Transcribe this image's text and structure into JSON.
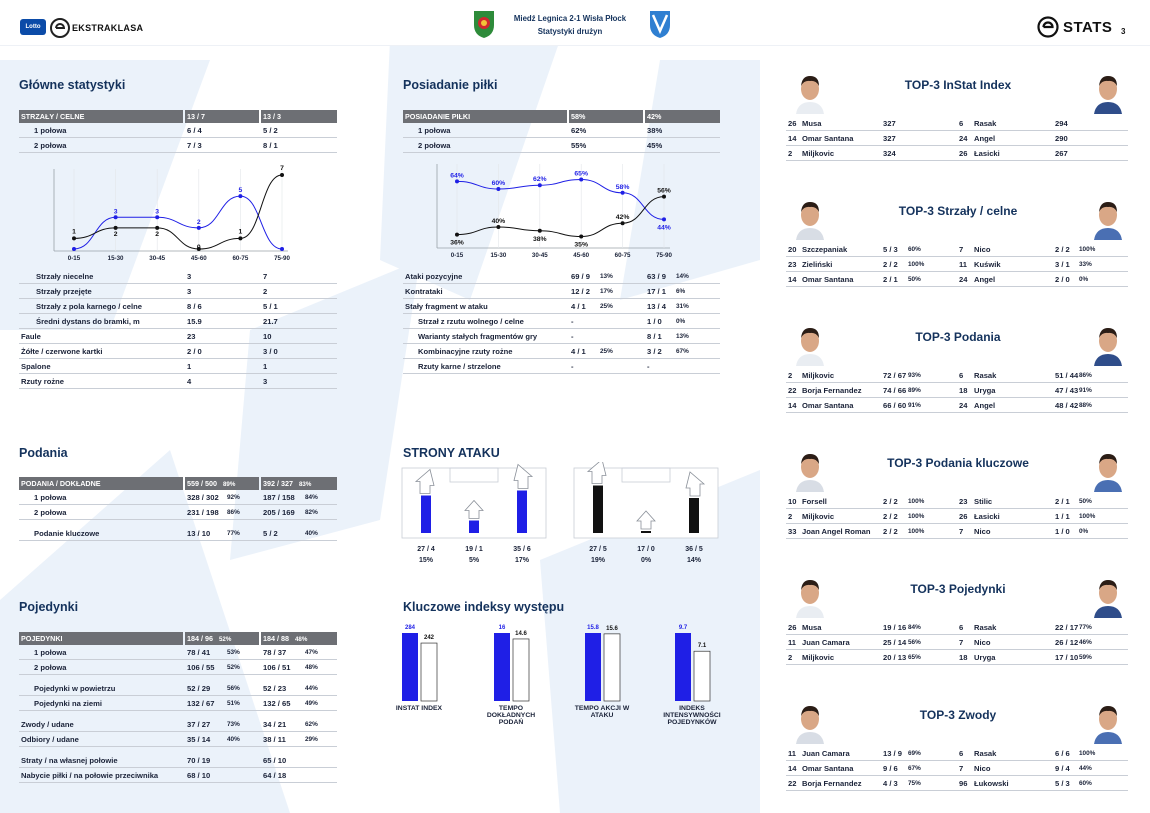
{
  "header": {
    "league": "EKSTRAKLASA",
    "lotto": "Lotto",
    "match": "Miedź Legnica 2-1 Wisła Płock",
    "subtitle": "Statystyki drużyn",
    "brand": "STATS",
    "page": "3"
  },
  "colors": {
    "blue": "#1f1fe6",
    "black": "#111111",
    "header": "#6d6f74",
    "navy": "#14325c"
  },
  "main_stats": {
    "title": "Główne statystyki",
    "header": [
      "STRZAŁY / CELNE",
      "13 / 7",
      "13 / 3"
    ],
    "rows1": [
      [
        "1 połowa",
        "6 / 4",
        "5 / 2"
      ],
      [
        "2 połowa",
        "7 / 3",
        "8 / 1"
      ]
    ],
    "rows2": [
      [
        "Strzały niecelne",
        "3",
        "7"
      ],
      [
        "Strzały przejęte",
        "3",
        "2"
      ],
      [
        "Strzały z pola karnego / celne",
        "8 / 6",
        "5 / 1"
      ],
      [
        "Średni dystans do bramki, m",
        "15.9",
        "21.7"
      ],
      [
        "Faule",
        "23",
        "10"
      ],
      [
        "Żółte / czerwone kartki",
        "2 / 0",
        "3 / 0"
      ],
      [
        "Spalone",
        "1",
        "1"
      ],
      [
        "Rzuty rożne",
        "4",
        "3"
      ]
    ]
  },
  "shots_chart": {
    "categories": [
      "0-15",
      "15-30",
      "30-45",
      "45-60",
      "60-75",
      "75-90"
    ],
    "series_blue": [
      0,
      3,
      3,
      2,
      5,
      0
    ],
    "series_black": [
      1,
      2,
      2,
      0,
      1,
      7
    ]
  },
  "possession": {
    "title": "Posiadanie piłki",
    "header": [
      "POSIADANIE PIŁKI",
      "58%",
      "42%"
    ],
    "rows1": [
      [
        "1 połowa",
        "62%",
        "38%"
      ],
      [
        "2 połowa",
        "55%",
        "45%"
      ]
    ],
    "rows2": [
      {
        "label": "Ataki pozycyjne",
        "a": "69 / 9",
        "ap": "13%",
        "b": "63 / 9",
        "bp": "14%",
        "indent": false
      },
      {
        "label": "Kontrataki",
        "a": "12 / 2",
        "ap": "17%",
        "b": "17 / 1",
        "bp": "6%",
        "indent": false
      },
      {
        "label": "Stały fragment w ataku",
        "a": "4 / 1",
        "ap": "25%",
        "b": "13 / 4",
        "bp": "31%",
        "indent": false
      },
      {
        "label": "Strzał z rzutu wolnego / celne",
        "a": "-",
        "ap": "",
        "b": "1 / 0",
        "bp": "0%",
        "indent": true
      },
      {
        "label": "Warianty stałych fragmentów gry",
        "a": "-",
        "ap": "",
        "b": "8 / 1",
        "bp": "13%",
        "indent": true
      },
      {
        "label": "Kombinacyjne rzuty rożne",
        "a": "4 / 1",
        "ap": "25%",
        "b": "3 / 2",
        "bp": "67%",
        "indent": true
      },
      {
        "label": "Rzuty karne / strzelone",
        "a": "-",
        "ap": "",
        "b": "-",
        "bp": "",
        "indent": true
      }
    ]
  },
  "possession_chart": {
    "categories": [
      "0-15",
      "15-30",
      "30-45",
      "45-60",
      "60-75",
      "75-90"
    ],
    "series_blue": [
      64,
      60,
      62,
      65,
      58,
      44
    ],
    "series_black": [
      36,
      40,
      38,
      35,
      42,
      56
    ],
    "labels_blue": [
      "64%",
      "60%",
      "62%",
      "65%",
      "58%",
      "44%"
    ],
    "labels_black": [
      "36%",
      "40%",
      "38%",
      "35%",
      "42%",
      "56%"
    ]
  },
  "passes": {
    "title": "Podania",
    "header": [
      "PODANIA / DOKŁADNE",
      "559 / 500",
      "89%",
      "392 / 327",
      "83%"
    ],
    "rows": [
      [
        "1 połowa",
        "328 / 302",
        "92%",
        "187 / 158",
        "84%"
      ],
      [
        "2 połowa",
        "231 / 198",
        "86%",
        "205 / 169",
        "82%"
      ],
      [
        "Podanie kluczowe",
        "13 / 10",
        "77%",
        "5 / 2",
        "40%"
      ]
    ]
  },
  "duels": {
    "title": "Pojedynki",
    "header": [
      "POJEDYNKI",
      "184 / 96",
      "52%",
      "184 / 88",
      "48%"
    ],
    "rows": [
      [
        "1 połowa",
        "78 / 41",
        "53%",
        "78 / 37",
        "47%"
      ],
      [
        "2 połowa",
        "106 / 55",
        "52%",
        "106 / 51",
        "48%"
      ],
      [
        "Pojedynki w powietrzu",
        "52 / 29",
        "56%",
        "52 / 23",
        "44%"
      ],
      [
        "Pojedynki na ziemi",
        "132 / 67",
        "51%",
        "132 / 65",
        "49%"
      ],
      [
        "Zwody / udane",
        "37 / 27",
        "73%",
        "34 / 21",
        "62%"
      ],
      [
        "Odbiory / udane",
        "35 / 14",
        "40%",
        "38 / 11",
        "29%"
      ],
      [
        "Straty / na własnej połowie",
        "70 / 19",
        "",
        "65 / 10",
        ""
      ],
      [
        "Nabycie piłki / na połowie przeciwnika",
        "68 / 10",
        "",
        "64 / 18",
        ""
      ]
    ]
  },
  "attack_sides": {
    "title": "STRONY ATAKU",
    "team_a": {
      "values": [
        "27 / 4",
        "19 / 1",
        "35 / 6"
      ],
      "pcts": [
        "15%",
        "5%",
        "17%"
      ],
      "fill": [
        0.15,
        0.05,
        0.17
      ]
    },
    "team_b": {
      "values": [
        "27 / 5",
        "17 / 0",
        "36 / 5"
      ],
      "pcts": [
        "19%",
        "0%",
        "14%"
      ],
      "fill": [
        0.19,
        0.0,
        0.14
      ]
    }
  },
  "key_indices": {
    "title": "Kluczowe indeksy występu",
    "items": [
      {
        "label": "INSTAT INDEX",
        "a": 284,
        "b": 242
      },
      {
        "label": "TEMPO DOKŁADNYCH PODAŃ",
        "a": 16,
        "b": 14.6
      },
      {
        "label": "TEMPO AKCJI W ATAKU",
        "a": 15.8,
        "b": 15.6
      },
      {
        "label": "INDEKS INTENSYWNOŚCI POJEDYNKÓW",
        "a": 9.7,
        "b": 7.1
      }
    ]
  },
  "top3": [
    {
      "title": "TOP-3 InStat Index",
      "rows": [
        {
          "n1": "26",
          "p1": "Musa",
          "v1": "327",
          "c1": "",
          "n2": "6",
          "p2": "Rasak",
          "v2": "294",
          "c2": ""
        },
        {
          "n1": "14",
          "p1": "Omar Santana",
          "v1": "327",
          "c1": "",
          "n2": "24",
          "p2": "Angel",
          "v2": "290",
          "c2": ""
        },
        {
          "n1": "2",
          "p1": "Miljkovic",
          "v1": "324",
          "c1": "",
          "n2": "26",
          "p2": "Łasicki",
          "v2": "267",
          "c2": ""
        }
      ]
    },
    {
      "title": "TOP-3 Strzały / celne",
      "rows": [
        {
          "n1": "20",
          "p1": "Szczepaniak",
          "v1": "5 / 3",
          "c1": "60%",
          "n2": "7",
          "p2": "Nico",
          "v2": "2 / 2",
          "c2": "100%"
        },
        {
          "n1": "23",
          "p1": "Zieliński",
          "v1": "2 / 2",
          "c1": "100%",
          "n2": "11",
          "p2": "Kuświk",
          "v2": "3 / 1",
          "c2": "33%"
        },
        {
          "n1": "14",
          "p1": "Omar Santana",
          "v1": "2 / 1",
          "c1": "50%",
          "n2": "24",
          "p2": "Angel",
          "v2": "2 / 0",
          "c2": "0%"
        }
      ]
    },
    {
      "title": "TOP-3 Podania",
      "rows": [
        {
          "n1": "2",
          "p1": "Miljkovic",
          "v1": "72 / 67",
          "c1": "93%",
          "n2": "6",
          "p2": "Rasak",
          "v2": "51 / 44",
          "c2": "86%"
        },
        {
          "n1": "22",
          "p1": "Borja Fernandez",
          "v1": "74 / 66",
          "c1": "89%",
          "n2": "18",
          "p2": "Uryga",
          "v2": "47 / 43",
          "c2": "91%"
        },
        {
          "n1": "14",
          "p1": "Omar Santana",
          "v1": "66 / 60",
          "c1": "91%",
          "n2": "24",
          "p2": "Angel",
          "v2": "48 / 42",
          "c2": "88%"
        }
      ]
    },
    {
      "title": "TOP-3 Podania kluczowe",
      "rows": [
        {
          "n1": "10",
          "p1": "Forsell",
          "v1": "2 / 2",
          "c1": "100%",
          "n2": "23",
          "p2": "Stilic",
          "v2": "2 / 1",
          "c2": "50%"
        },
        {
          "n1": "2",
          "p1": "Miljkovic",
          "v1": "2 / 2",
          "c1": "100%",
          "n2": "26",
          "p2": "Łasicki",
          "v2": "1 / 1",
          "c2": "100%"
        },
        {
          "n1": "33",
          "p1": "Joan Angel Roman",
          "v1": "2 / 2",
          "c1": "100%",
          "n2": "7",
          "p2": "Nico",
          "v2": "1 / 0",
          "c2": "0%"
        }
      ]
    },
    {
      "title": "TOP-3 Pojedynki",
      "rows": [
        {
          "n1": "26",
          "p1": "Musa",
          "v1": "19 / 16",
          "c1": "84%",
          "n2": "6",
          "p2": "Rasak",
          "v2": "22 / 17",
          "c2": "77%"
        },
        {
          "n1": "11",
          "p1": "Juan Camara",
          "v1": "25 / 14",
          "c1": "56%",
          "n2": "7",
          "p2": "Nico",
          "v2": "26 / 12",
          "c2": "46%"
        },
        {
          "n1": "2",
          "p1": "Miljkovic",
          "v1": "20 / 13",
          "c1": "65%",
          "n2": "18",
          "p2": "Uryga",
          "v2": "17 / 10",
          "c2": "59%"
        }
      ]
    },
    {
      "title": "TOP-3 Zwody",
      "rows": [
        {
          "n1": "11",
          "p1": "Juan Camara",
          "v1": "13 / 9",
          "c1": "69%",
          "n2": "6",
          "p2": "Rasak",
          "v2": "6 / 6",
          "c2": "100%"
        },
        {
          "n1": "14",
          "p1": "Omar Santana",
          "v1": "9 / 6",
          "c1": "67%",
          "n2": "7",
          "p2": "Nico",
          "v2": "9 / 4",
          "c2": "44%"
        },
        {
          "n1": "22",
          "p1": "Borja Fernandez",
          "v1": "4 / 3",
          "c1": "75%",
          "n2": "96",
          "p2": "Łukowski",
          "v2": "5 / 3",
          "c2": "60%"
        }
      ]
    }
  ]
}
